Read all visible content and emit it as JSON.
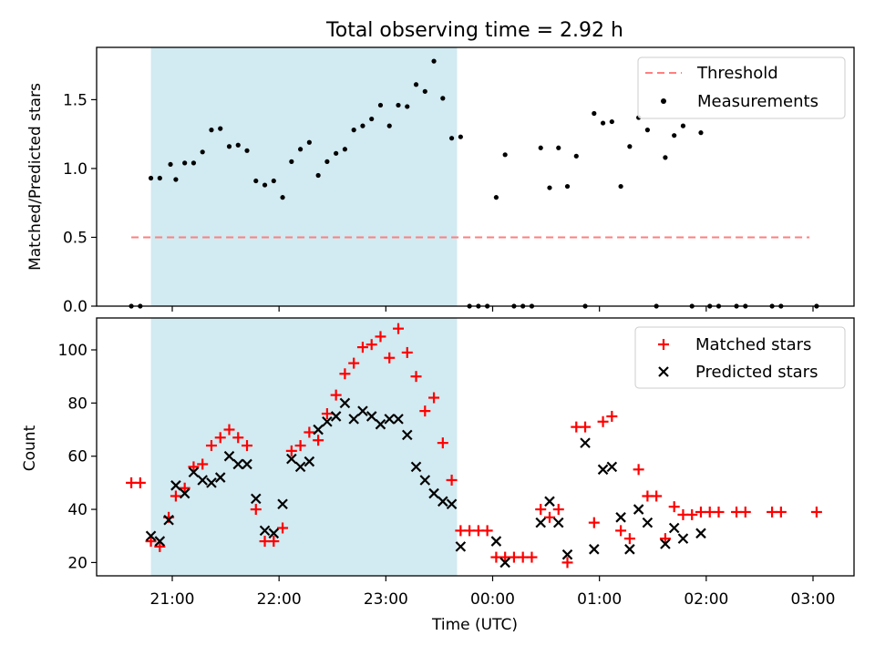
{
  "figure": {
    "title": "Total observing time = 2.92 h",
    "colors": {
      "shade": "#add8e6",
      "threshold": "#ff7f7f",
      "measurements": "#000000",
      "matched": "#ff0000",
      "predicted": "#000000"
    }
  },
  "chart_data": [
    {
      "type": "scatter",
      "panel": "top",
      "ylabel": "Matched/Predicted stars",
      "ylim": [
        0,
        1.88
      ],
      "yticks": [
        "0.0",
        "0.5",
        "1.0",
        "1.5"
      ],
      "legend_placement": "upper right",
      "shaded_interval": [
        "20:48",
        "23:40"
      ],
      "threshold": {
        "name": "Threshold",
        "start": "20:37",
        "end": "02:58",
        "value": 0.5
      },
      "series": [
        {
          "name": "Measurements",
          "marker": "dot",
          "points": [
            [
              "20:37",
              0
            ],
            [
              "20:42",
              0
            ],
            [
              "20:48",
              0.93
            ],
            [
              "20:53",
              0.93
            ],
            [
              "20:59",
              1.03
            ],
            [
              "21:02",
              0.92
            ],
            [
              "21:07",
              1.04
            ],
            [
              "21:12",
              1.04
            ],
            [
              "21:17",
              1.12
            ],
            [
              "21:22",
              1.28
            ],
            [
              "21:27",
              1.29
            ],
            [
              "21:32",
              1.16
            ],
            [
              "21:37",
              1.17
            ],
            [
              "21:42",
              1.13
            ],
            [
              "21:47",
              0.91
            ],
            [
              "21:52",
              0.88
            ],
            [
              "21:57",
              0.91
            ],
            [
              "22:02",
              0.79
            ],
            [
              "22:07",
              1.05
            ],
            [
              "22:12",
              1.14
            ],
            [
              "22:17",
              1.19
            ],
            [
              "22:22",
              0.95
            ],
            [
              "22:27",
              1.05
            ],
            [
              "22:32",
              1.11
            ],
            [
              "22:37",
              1.14
            ],
            [
              "22:42",
              1.28
            ],
            [
              "22:47",
              1.31
            ],
            [
              "22:52",
              1.36
            ],
            [
              "22:57",
              1.46
            ],
            [
              "23:02",
              1.31
            ],
            [
              "23:07",
              1.46
            ],
            [
              "23:12",
              1.45
            ],
            [
              "23:17",
              1.61
            ],
            [
              "23:22",
              1.56
            ],
            [
              "23:27",
              1.78
            ],
            [
              "23:32",
              1.51
            ],
            [
              "23:37",
              1.22
            ],
            [
              "23:42",
              1.23
            ],
            [
              "23:47",
              0
            ],
            [
              "23:52",
              0
            ],
            [
              "23:57",
              0
            ],
            [
              "00:02",
              0.79
            ],
            [
              "00:07",
              1.1
            ],
            [
              "00:12",
              0
            ],
            [
              "00:17",
              0
            ],
            [
              "00:22",
              0
            ],
            [
              "00:27",
              1.15
            ],
            [
              "00:32",
              0.86
            ],
            [
              "00:37",
              1.15
            ],
            [
              "00:42",
              0.87
            ],
            [
              "00:47",
              1.09
            ],
            [
              "00:52",
              0
            ],
            [
              "00:57",
              1.4
            ],
            [
              "01:02",
              1.33
            ],
            [
              "01:07",
              1.34
            ],
            [
              "01:12",
              0.87
            ],
            [
              "01:17",
              1.16
            ],
            [
              "01:22",
              1.37
            ],
            [
              "01:27",
              1.28
            ],
            [
              "01:32",
              0
            ],
            [
              "01:37",
              1.08
            ],
            [
              "01:42",
              1.24
            ],
            [
              "01:47",
              1.31
            ],
            [
              "01:52",
              0
            ],
            [
              "01:57",
              1.26
            ],
            [
              "02:02",
              0
            ],
            [
              "02:07",
              0
            ],
            [
              "02:17",
              0
            ],
            [
              "02:22",
              0
            ],
            [
              "02:37",
              0
            ],
            [
              "02:42",
              0
            ],
            [
              "03:02",
              0
            ]
          ]
        }
      ]
    },
    {
      "type": "scatter",
      "panel": "bottom",
      "xlabel": "Time (UTC)",
      "ylabel": "Count",
      "ylim": [
        15,
        112
      ],
      "yticks": [
        "20",
        "40",
        "60",
        "80",
        "100"
      ],
      "xticks": [
        "21:00",
        "22:00",
        "23:00",
        "00:00",
        "01:00",
        "02:00",
        "03:00"
      ],
      "legend_placement": "upper right",
      "shaded_interval": [
        "20:48",
        "23:40"
      ],
      "series": [
        {
          "name": "Matched stars",
          "marker": "plus",
          "points": [
            [
              "20:37",
              50
            ],
            [
              "20:42",
              50
            ],
            [
              "20:48",
              28
            ],
            [
              "20:53",
              26
            ],
            [
              "20:58",
              37
            ],
            [
              "21:02",
              45
            ],
            [
              "21:07",
              48
            ],
            [
              "21:12",
              56
            ],
            [
              "21:17",
              57
            ],
            [
              "21:22",
              64
            ],
            [
              "21:27",
              67
            ],
            [
              "21:32",
              70
            ],
            [
              "21:37",
              67
            ],
            [
              "21:42",
              64
            ],
            [
              "21:47",
              40
            ],
            [
              "21:52",
              28
            ],
            [
              "21:57",
              28
            ],
            [
              "22:02",
              33
            ],
            [
              "22:07",
              62
            ],
            [
              "22:12",
              64
            ],
            [
              "22:17",
              69
            ],
            [
              "22:22",
              66
            ],
            [
              "22:27",
              76
            ],
            [
              "22:32",
              83
            ],
            [
              "22:37",
              91
            ],
            [
              "22:42",
              95
            ],
            [
              "22:47",
              101
            ],
            [
              "22:52",
              102
            ],
            [
              "22:57",
              105
            ],
            [
              "23:02",
              97
            ],
            [
              "23:07",
              108
            ],
            [
              "23:12",
              99
            ],
            [
              "23:17",
              90
            ],
            [
              "23:22",
              77
            ],
            [
              "23:27",
              82
            ],
            [
              "23:32",
              65
            ],
            [
              "23:37",
              51
            ],
            [
              "23:42",
              32
            ],
            [
              "23:47",
              32
            ],
            [
              "23:52",
              32
            ],
            [
              "23:57",
              32
            ],
            [
              "00:02",
              22
            ],
            [
              "00:07",
              22
            ],
            [
              "00:12",
              22
            ],
            [
              "00:17",
              22
            ],
            [
              "00:22",
              22
            ],
            [
              "00:27",
              40
            ],
            [
              "00:32",
              37
            ],
            [
              "00:37",
              40
            ],
            [
              "00:42",
              20
            ],
            [
              "00:47",
              71
            ],
            [
              "00:52",
              71
            ],
            [
              "00:57",
              35
            ],
            [
              "01:02",
              73
            ],
            [
              "01:07",
              75
            ],
            [
              "01:12",
              32
            ],
            [
              "01:17",
              29
            ],
            [
              "01:22",
              55
            ],
            [
              "01:27",
              45
            ],
            [
              "01:32",
              45
            ],
            [
              "01:37",
              29
            ],
            [
              "01:42",
              41
            ],
            [
              "01:47",
              38
            ],
            [
              "01:52",
              38
            ],
            [
              "01:57",
              39
            ],
            [
              "02:02",
              39
            ],
            [
              "02:07",
              39
            ],
            [
              "02:17",
              39
            ],
            [
              "02:22",
              39
            ],
            [
              "02:37",
              39
            ],
            [
              "02:42",
              39
            ],
            [
              "03:02",
              39
            ]
          ]
        },
        {
          "name": "Predicted stars",
          "marker": "x",
          "points": [
            [
              "20:48",
              30
            ],
            [
              "20:53",
              28
            ],
            [
              "20:58",
              36
            ],
            [
              "21:02",
              49
            ],
            [
              "21:07",
              46
            ],
            [
              "21:12",
              54
            ],
            [
              "21:17",
              51
            ],
            [
              "21:22",
              50
            ],
            [
              "21:27",
              52
            ],
            [
              "21:32",
              60
            ],
            [
              "21:37",
              57
            ],
            [
              "21:42",
              57
            ],
            [
              "21:47",
              44
            ],
            [
              "21:52",
              32
            ],
            [
              "21:57",
              31
            ],
            [
              "22:02",
              42
            ],
            [
              "22:07",
              59
            ],
            [
              "22:12",
              56
            ],
            [
              "22:17",
              58
            ],
            [
              "22:22",
              70
            ],
            [
              "22:27",
              73
            ],
            [
              "22:32",
              75
            ],
            [
              "22:37",
              80
            ],
            [
              "22:42",
              74
            ],
            [
              "22:47",
              77
            ],
            [
              "22:52",
              75
            ],
            [
              "22:57",
              72
            ],
            [
              "23:02",
              74
            ],
            [
              "23:07",
              74
            ],
            [
              "23:12",
              68
            ],
            [
              "23:17",
              56
            ],
            [
              "23:22",
              51
            ],
            [
              "23:27",
              46
            ],
            [
              "23:32",
              43
            ],
            [
              "23:37",
              42
            ],
            [
              "23:42",
              26
            ],
            [
              "00:02",
              28
            ],
            [
              "00:07",
              20
            ],
            [
              "00:27",
              35
            ],
            [
              "00:32",
              43
            ],
            [
              "00:37",
              35
            ],
            [
              "00:42",
              23
            ],
            [
              "00:57",
              25
            ],
            [
              "01:02",
              55
            ],
            [
              "01:07",
              56
            ],
            [
              "01:12",
              37
            ],
            [
              "01:17",
              25
            ],
            [
              "01:22",
              40
            ],
            [
              "01:27",
              35
            ],
            [
              "01:37",
              27
            ],
            [
              "01:42",
              33
            ],
            [
              "01:47",
              29
            ],
            [
              "01:57",
              31
            ],
            [
              "00:52",
              65
            ]
          ]
        }
      ]
    }
  ]
}
